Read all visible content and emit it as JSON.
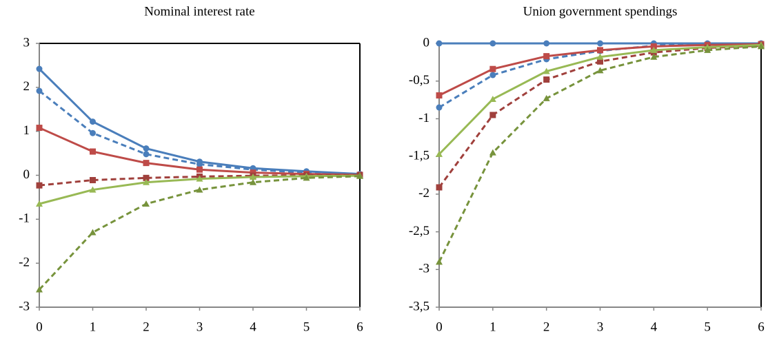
{
  "chart_data": [
    {
      "type": "line",
      "title": "Nominal interest rate",
      "x": [
        0,
        1,
        2,
        3,
        4,
        5,
        6
      ],
      "xlim": [
        0,
        6
      ],
      "xticks": [
        0,
        1,
        2,
        3,
        4,
        5,
        6
      ],
      "ylim": [
        -3,
        3
      ],
      "yticks": [
        -3,
        -2,
        -1,
        0,
        1,
        2,
        3
      ],
      "series": [
        {
          "color": "#4a7ebb",
          "marker": "circle",
          "dashed": false,
          "values": [
            2.42,
            1.22,
            0.61,
            0.31,
            0.16,
            0.09,
            0.03
          ]
        },
        {
          "color": "#4a7ebb",
          "marker": "circle",
          "dashed": true,
          "values": [
            1.92,
            0.96,
            0.48,
            0.25,
            0.13,
            0.06,
            0.02
          ]
        },
        {
          "color": "#be4b48",
          "marker": "square",
          "dashed": false,
          "values": [
            1.08,
            0.54,
            0.28,
            0.13,
            0.06,
            0.03,
            0.01
          ]
        },
        {
          "color": "#a0403c",
          "marker": "square",
          "dashed": true,
          "values": [
            -0.23,
            -0.11,
            -0.06,
            -0.03,
            -0.01,
            0,
            0
          ]
        },
        {
          "color": "#98b954",
          "marker": "triangle",
          "dashed": false,
          "values": [
            -0.65,
            -0.33,
            -0.16,
            -0.08,
            -0.04,
            -0.02,
            -0.01
          ]
        },
        {
          "color": "#77933c",
          "marker": "triangle",
          "dashed": true,
          "values": [
            -2.6,
            -1.3,
            -0.65,
            -0.33,
            -0.16,
            -0.06,
            -0.02
          ]
        }
      ]
    },
    {
      "type": "line",
      "title": "Union government  spendings",
      "x": [
        0,
        1,
        2,
        3,
        4,
        5,
        6
      ],
      "xlim": [
        0,
        6
      ],
      "xticks": [
        0,
        1,
        2,
        3,
        4,
        5,
        6
      ],
      "ylim": [
        -3.5,
        0
      ],
      "yticks": [
        {
          "value": -3.5,
          "label": "-3,5"
        },
        -3,
        {
          "value": -2.5,
          "label": "-2,5"
        },
        -2,
        {
          "value": -1.5,
          "label": "-1,5"
        },
        -1,
        {
          "value": -0.5,
          "label": "-0,5"
        },
        0
      ],
      "series": [
        {
          "color": "#4a7ebb",
          "marker": "circle",
          "dashed": false,
          "values": [
            0,
            0,
            0,
            0,
            0,
            0,
            0
          ]
        },
        {
          "color": "#4a7ebb",
          "marker": "circle",
          "dashed": true,
          "values": [
            -0.85,
            -0.42,
            -0.21,
            -0.1,
            -0.03,
            -0.01,
            0
          ]
        },
        {
          "color": "#be4b48",
          "marker": "square",
          "dashed": false,
          "values": [
            -0.69,
            -0.34,
            -0.17,
            -0.09,
            -0.04,
            -0.02,
            -0.01
          ]
        },
        {
          "color": "#a0403c",
          "marker": "square",
          "dashed": true,
          "values": [
            -1.91,
            -0.95,
            -0.48,
            -0.24,
            -0.12,
            -0.06,
            -0.03
          ]
        },
        {
          "color": "#98b954",
          "marker": "triangle",
          "dashed": false,
          "values": [
            -1.47,
            -0.74,
            -0.37,
            -0.18,
            -0.09,
            -0.05,
            -0.02
          ]
        },
        {
          "color": "#77933c",
          "marker": "triangle",
          "dashed": true,
          "values": [
            -2.9,
            -1.45,
            -0.73,
            -0.36,
            -0.18,
            -0.09,
            -0.04
          ]
        }
      ]
    }
  ]
}
